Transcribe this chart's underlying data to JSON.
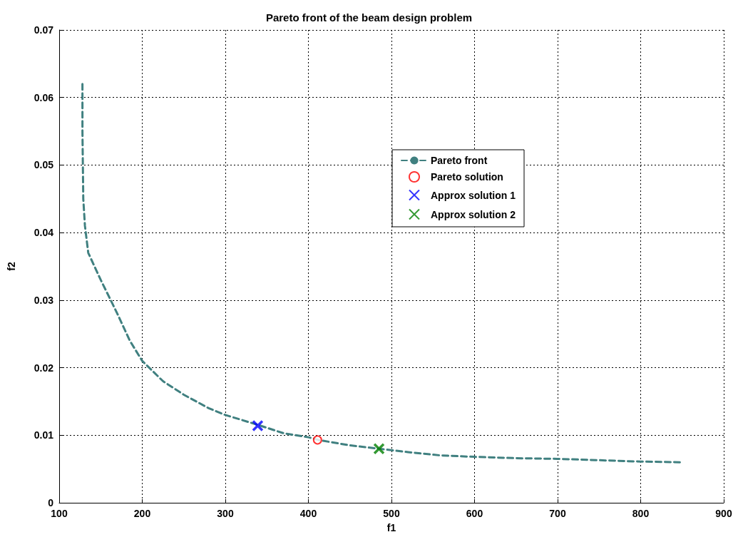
{
  "chart_data": {
    "type": "line",
    "title": "Pareto front of the beam design problem",
    "xlabel": "f1",
    "ylabel": "f2",
    "xlim": [
      100,
      900
    ],
    "xticks": [
      100,
      200,
      300,
      400,
      500,
      600,
      700,
      800,
      900
    ],
    "ylim": [
      0,
      0.07
    ],
    "yticks": [
      0,
      0.01,
      0.02,
      0.03,
      0.04,
      0.05,
      0.06,
      0.07
    ],
    "grid": true,
    "legend": "right",
    "series": [
      {
        "name": "Pareto front",
        "color": "#408080",
        "line_style": "dashed",
        "marker": "none",
        "x": [
          128,
          128,
          129,
          131,
          135,
          150,
          170,
          185,
          200,
          225,
          250,
          280,
          300,
          340,
          370,
          400,
          412,
          450,
          485,
          520,
          560,
          600,
          650,
          700,
          750,
          800,
          848
        ],
        "values": [
          0.062,
          0.055,
          0.045,
          0.041,
          0.037,
          0.033,
          0.028,
          0.024,
          0.021,
          0.018,
          0.016,
          0.014,
          0.013,
          0.0115,
          0.0103,
          0.0097,
          0.0093,
          0.0085,
          0.008,
          0.0075,
          0.007,
          0.0068,
          0.0066,
          0.0065,
          0.0063,
          0.0061,
          0.006
        ]
      },
      {
        "name": "Pareto solution",
        "type": "scatter",
        "color": "#ff0000",
        "marker": "circle",
        "x": [
          411
        ],
        "values": [
          0.0093
        ]
      },
      {
        "name": "Approx solution 1",
        "type": "scatter",
        "color": "#0000ff",
        "marker": "cross",
        "x": [
          339
        ],
        "values": [
          0.0114
        ]
      },
      {
        "name": "Approx solution 2",
        "type": "scatter",
        "color": "#008000",
        "marker": "cross",
        "x": [
          485
        ],
        "values": [
          0.008
        ]
      }
    ]
  }
}
